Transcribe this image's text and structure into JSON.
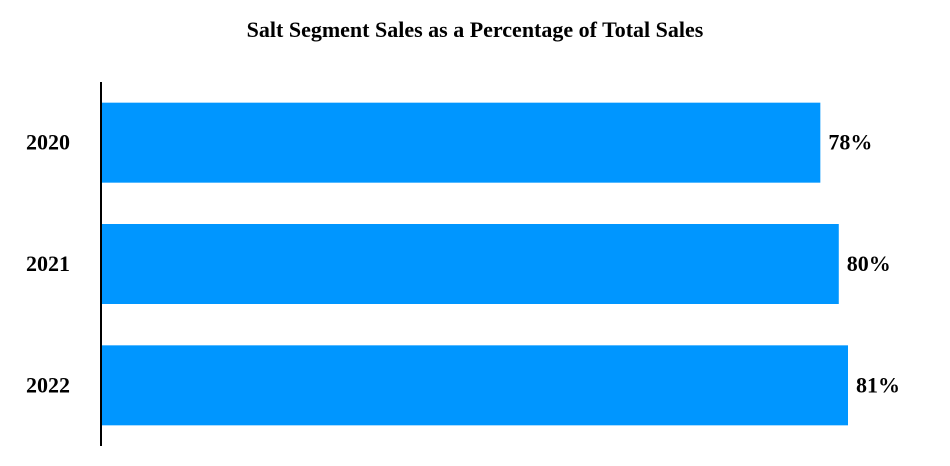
{
  "chart_data": {
    "type": "barh",
    "title": "Salt Segment Sales as a Percentage of Total Sales",
    "categories": [
      "2020",
      "2021",
      "2022"
    ],
    "values": [
      78,
      80,
      81
    ],
    "value_labels": [
      "78%",
      "80%",
      "81%"
    ],
    "color": "#0096ff"
  }
}
